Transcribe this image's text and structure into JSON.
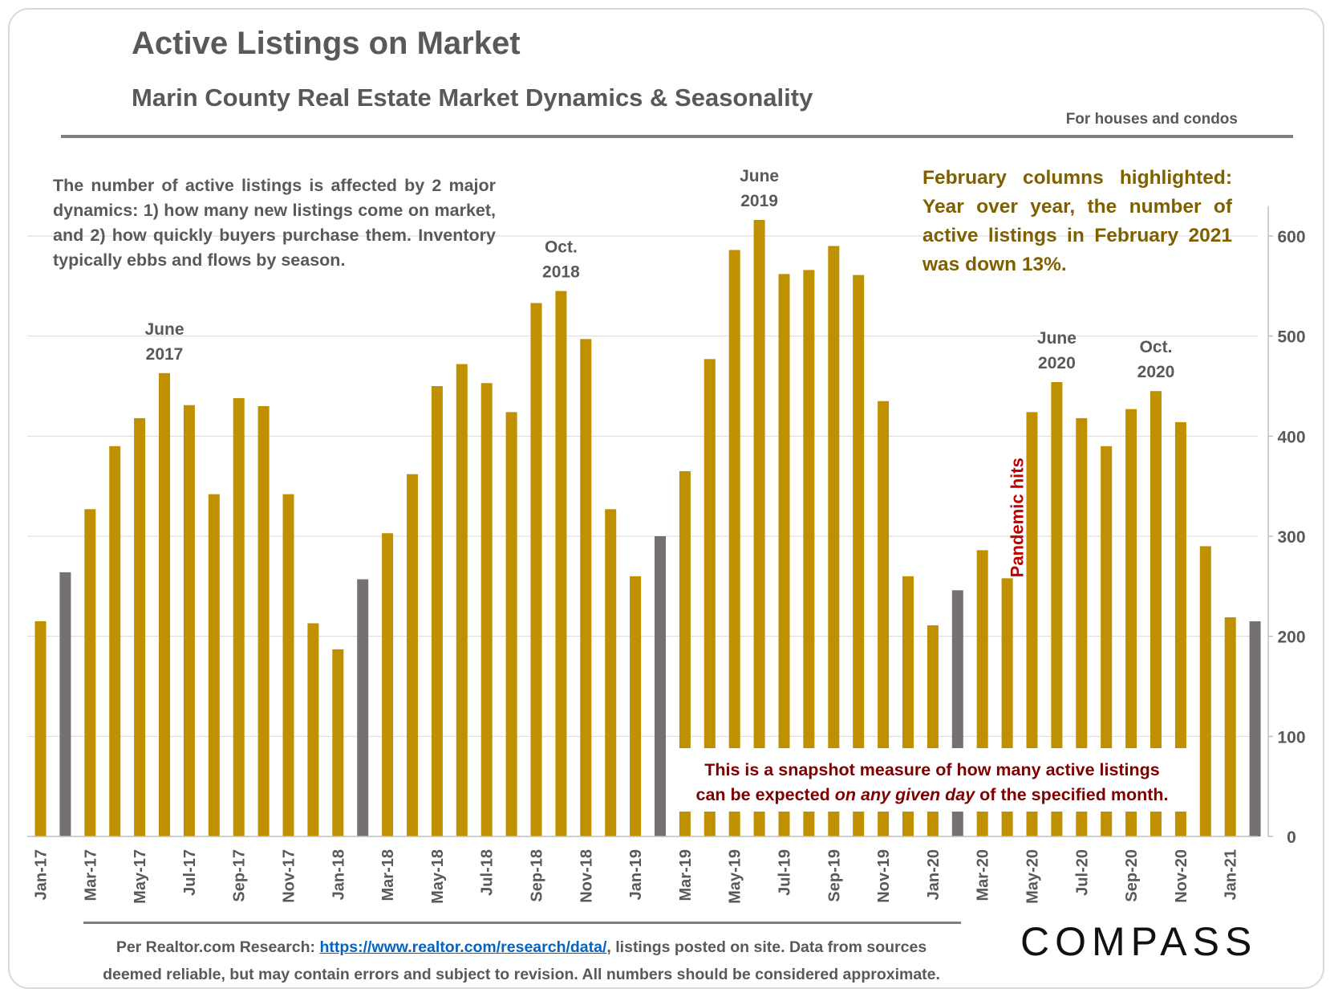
{
  "header": {
    "title": "Active Listings on Market",
    "subtitle": "Marin County Real Estate Market Dynamics & Seasonality",
    "scope_note": "For houses and condos"
  },
  "intro_text": "The number of active listings is affected by 2 major dynamics: 1) how many new listings come on market, and 2) how quickly buyers purchase them. Inventory typically ebbs and flows by season.",
  "highlight_note": "February columns highlighted: Year over year, the number of active listings in February 2021 was down 13%.",
  "snapshot_note": {
    "line1": "This is a snapshot measure of how many active listings",
    "line2_before": "can be expected ",
    "line2_italic": "on any given day",
    "line2_after": " of the specified month."
  },
  "footer": {
    "source_prefix": "Per Realtor.com Research:",
    "source_link": "https://www.realtor.com/research/data/",
    "source_suffix": ", listings posted on site. Data from sources",
    "source_line2": "deemed reliable, but may contain errors and subject to revision. All numbers should be considered approximate.",
    "brand": "COMPASS"
  },
  "colors": {
    "bar": "#bf9000",
    "february_bar": "#767171",
    "pandemic_text": "#c00000",
    "snapshot_text": "#7f0000",
    "highlight_text": "#7f6000",
    "gridline": "#d9d9d9"
  },
  "chart_data": {
    "type": "bar",
    "categories": [
      "Jan-17",
      "Feb-17",
      "Mar-17",
      "Apr-17",
      "May-17",
      "Jun-17",
      "Jul-17",
      "Aug-17",
      "Sep-17",
      "Oct-17",
      "Nov-17",
      "Dec-17",
      "Jan-18",
      "Feb-18",
      "Mar-18",
      "Apr-18",
      "May-18",
      "Jun-18",
      "Jul-18",
      "Aug-18",
      "Sep-18",
      "Oct-18",
      "Nov-18",
      "Dec-18",
      "Jan-19",
      "Feb-19",
      "Mar-19",
      "Apr-19",
      "May-19",
      "Jun-19",
      "Jul-19",
      "Aug-19",
      "Sep-19",
      "Oct-19",
      "Nov-19",
      "Dec-19",
      "Jan-20",
      "Feb-20",
      "Mar-20",
      "Apr-20",
      "May-20",
      "Jun-20",
      "Jul-20",
      "Aug-20",
      "Sep-20",
      "Oct-20",
      "Nov-20",
      "Dec-20",
      "Jan-21",
      "Feb-21"
    ],
    "values": [
      215,
      264,
      327,
      390,
      418,
      463,
      431,
      342,
      438,
      430,
      342,
      213,
      187,
      257,
      303,
      362,
      450,
      472,
      453,
      424,
      533,
      545,
      497,
      327,
      260,
      300,
      365,
      477,
      586,
      616,
      562,
      566,
      590,
      561,
      435,
      260,
      211,
      246,
      286,
      258,
      424,
      454,
      418,
      390,
      427,
      445,
      414,
      290,
      219,
      215
    ],
    "highlighted": [
      "Feb-17",
      "Feb-18",
      "Feb-19",
      "Feb-20",
      "Feb-21"
    ],
    "tick_labels": [
      "Jan-17",
      "Mar-17",
      "May-17",
      "Jul-17",
      "Sep-17",
      "Nov-17",
      "Jan-18",
      "Mar-18",
      "May-18",
      "Jul-18",
      "Sep-18",
      "Nov-18",
      "Jan-19",
      "Mar-19",
      "May-19",
      "Jul-19",
      "Sep-19",
      "Nov-19",
      "Jan-20",
      "Mar-20",
      "May-20",
      "Jul-20",
      "Sep-20",
      "Nov-20",
      "Jan-21"
    ],
    "y_ticks": [
      0,
      100,
      200,
      300,
      400,
      500,
      600
    ],
    "ylim": [
      0,
      630
    ],
    "y_axis_side": "right",
    "grid": true,
    "annotations": [
      {
        "at": "Jun-17",
        "line1": "June",
        "line2": "2017"
      },
      {
        "at": "Oct-18",
        "line1": "Oct.",
        "line2": "2018"
      },
      {
        "at": "Jun-19",
        "line1": "June",
        "line2": "2019"
      },
      {
        "at": "Jun-20",
        "line1": "June",
        "line2": "2020"
      },
      {
        "at": "Oct-20",
        "line1": "Oct.",
        "line2": "2020"
      }
    ],
    "pandemic_label": {
      "at": "Apr-20",
      "text": "Pandemic hits"
    }
  }
}
